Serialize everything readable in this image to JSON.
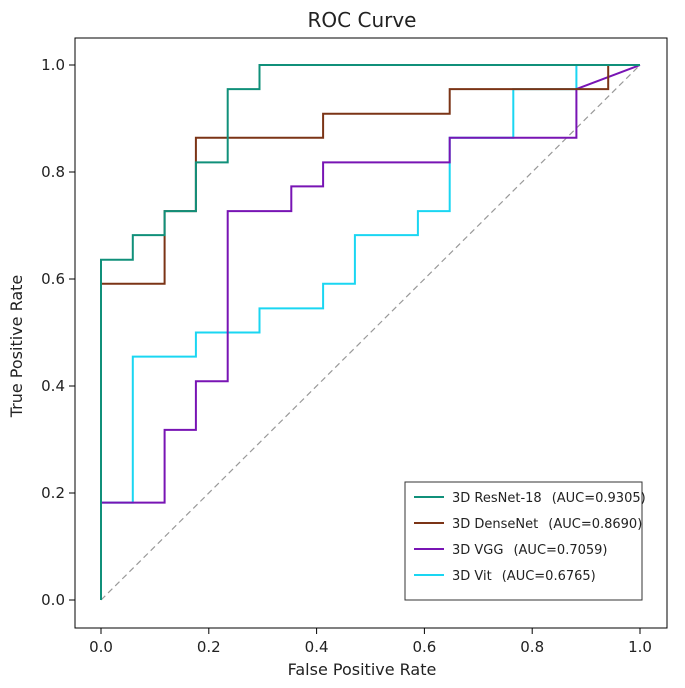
{
  "chart_data": {
    "type": "line",
    "title": "ROC Curve",
    "xlabel": "False Positive Rate",
    "ylabel": "True Positive Rate",
    "xlim": [
      0.0,
      1.0
    ],
    "ylim": [
      0.0,
      1.0
    ],
    "xticks": [
      "0.0",
      "0.2",
      "0.4",
      "0.6",
      "0.8",
      "1.0"
    ],
    "yticks": [
      "0.0",
      "0.2",
      "0.4",
      "0.6",
      "0.8",
      "1.0"
    ],
    "grid": false,
    "legend_position": "bottom-right",
    "reference_line": {
      "name": "chance",
      "x": [
        0,
        1
      ],
      "y": [
        0,
        1
      ],
      "color": "#999999",
      "style": "dashed"
    },
    "series": [
      {
        "name": "3D ResNet-18",
        "auc_label": "(AUC=0.9305)",
        "color": "#10907a",
        "x": [
          0,
          0,
          0.059,
          0.059,
          0.118,
          0.118,
          0.176,
          0.176,
          0.235,
          0.235,
          0.294,
          0.294,
          1.0
        ],
        "y": [
          0,
          0.636,
          0.636,
          0.682,
          0.682,
          0.727,
          0.727,
          0.818,
          0.818,
          0.955,
          0.955,
          1.0,
          1.0
        ]
      },
      {
        "name": "3D DenseNet",
        "auc_label": "(AUC=0.8690)",
        "color": "#7b3416",
        "x": [
          0,
          0,
          0.118,
          0.118,
          0.176,
          0.176,
          0.412,
          0.412,
          0.647,
          0.647,
          0.941,
          0.941,
          1.0
        ],
        "y": [
          0,
          0.591,
          0.591,
          0.727,
          0.727,
          0.864,
          0.864,
          0.909,
          0.909,
          0.955,
          0.955,
          1.0,
          1.0
        ]
      },
      {
        "name": "3D VGG",
        "auc_label": "(AUC=0.7059)",
        "color": "#7814b4",
        "x": [
          0,
          0,
          0.118,
          0.118,
          0.176,
          0.176,
          0.235,
          0.235,
          0.353,
          0.353,
          0.412,
          0.412,
          0.647,
          0.647,
          0.882,
          0.882,
          1.0
        ],
        "y": [
          0,
          0.182,
          0.182,
          0.318,
          0.318,
          0.409,
          0.409,
          0.727,
          0.727,
          0.773,
          0.773,
          0.818,
          0.818,
          0.864,
          0.864,
          0.955,
          1.0
        ]
      },
      {
        "name": "3D Vit",
        "auc_label": "(AUC=0.6765)",
        "color": "#1ad6f2",
        "x": [
          0,
          0,
          0.059,
          0.059,
          0.176,
          0.176,
          0.294,
          0.294,
          0.412,
          0.412,
          0.471,
          0.471,
          0.588,
          0.588,
          0.647,
          0.647,
          0.765,
          0.765,
          0.882,
          0.882,
          1.0
        ],
        "y": [
          0,
          0.182,
          0.182,
          0.455,
          0.455,
          0.5,
          0.5,
          0.545,
          0.545,
          0.591,
          0.591,
          0.682,
          0.682,
          0.727,
          0.727,
          0.864,
          0.864,
          0.955,
          0.955,
          1.0,
          1.0
        ]
      }
    ]
  }
}
